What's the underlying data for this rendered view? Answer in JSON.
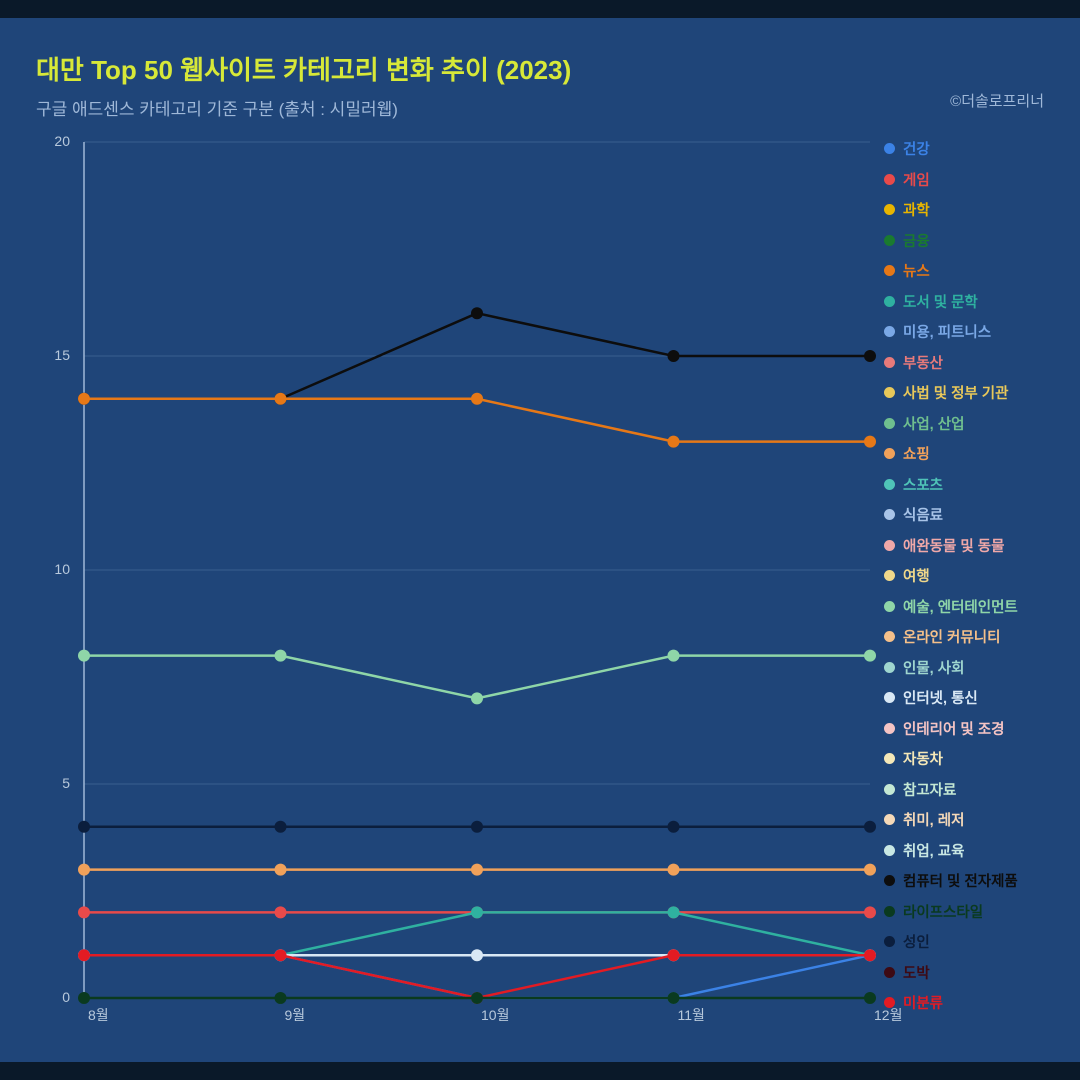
{
  "title": "대만 Top 50 웹사이트 카테고리 변화 추이 (2023)",
  "subtitle": "구글 애드센스 카테고리 기준 구분 (출처 : 시밀러웹)",
  "credit": "©더솔로프리너",
  "colors": {
    "page_bg": "#0a1929",
    "panel_bg": "#1f4579",
    "title": "#d7e838",
    "subtitle": "#9fb8d8",
    "credit": "#9fb8d8",
    "axis_text": "#b8c9dc",
    "grid": "#3a5f8f",
    "axis_line": "#9fb8d8"
  },
  "chart": {
    "type": "line",
    "x_labels": [
      "8월",
      "9월",
      "10월",
      "11월",
      "12월"
    ],
    "y": {
      "min": 0,
      "max": 20,
      "ticks": [
        0,
        5,
        10,
        15,
        20
      ]
    },
    "marker_radius": 6,
    "line_width": 2.5,
    "series": [
      {
        "name": "컴퓨터 및 전자제품",
        "color": "#0d0d0d",
        "values": [
          14,
          14,
          16,
          15,
          15
        ]
      },
      {
        "name": "뉴스",
        "color": "#e67817",
        "values": [
          14,
          14,
          14,
          13,
          13
        ]
      },
      {
        "name": "예술, 엔터테인먼트",
        "color": "#8fd6a8",
        "values": [
          8,
          8,
          7,
          8,
          8
        ]
      },
      {
        "name": "성인",
        "color": "#0b1e3d",
        "values": [
          4,
          4,
          4,
          4,
          4
        ]
      },
      {
        "name": "쇼핑",
        "color": "#f0a15a",
        "values": [
          3,
          3,
          3,
          3,
          3
        ]
      },
      {
        "name": "게임",
        "color": "#e84a4a",
        "values": [
          2,
          2,
          2,
          2,
          2
        ]
      },
      {
        "name": "도서 및 문학",
        "color": "#2fb1a0",
        "values": [
          1,
          1,
          2,
          2,
          1
        ]
      },
      {
        "name": "인터넷, 통신",
        "color": "#d9e8f5",
        "values": [
          1,
          1,
          1,
          1,
          1
        ]
      },
      {
        "name": "건강",
        "color": "#3b82e6",
        "values": [
          1,
          1,
          0,
          0,
          1
        ]
      },
      {
        "name": "미분류",
        "color": "#e31b23",
        "values": [
          1,
          1,
          0,
          1,
          1
        ]
      },
      {
        "name": "라이프스타일",
        "color": "#0a3a1f",
        "values": [
          0,
          0,
          0,
          0,
          0
        ]
      }
    ]
  },
  "legend": [
    {
      "label": "건강",
      "color": "#3b82e6"
    },
    {
      "label": "게임",
      "color": "#e84a4a"
    },
    {
      "label": "과학",
      "color": "#e8b500"
    },
    {
      "label": "금융",
      "color": "#1a7a2f"
    },
    {
      "label": "뉴스",
      "color": "#e67817"
    },
    {
      "label": "도서 및 문학",
      "color": "#2fb1a0"
    },
    {
      "label": "미용, 피트니스",
      "color": "#7aa8e6"
    },
    {
      "label": "부동산",
      "color": "#e87a7a"
    },
    {
      "label": "사법 및 정부 기관",
      "color": "#e8c85a"
    },
    {
      "label": "사업, 산업",
      "color": "#6fbf8f"
    },
    {
      "label": "쇼핑",
      "color": "#f0a15a"
    },
    {
      "label": "스포츠",
      "color": "#4fc4b8"
    },
    {
      "label": "식음료",
      "color": "#a8c4e8"
    },
    {
      "label": "애완동물 및 동물",
      "color": "#f0a8a8"
    },
    {
      "label": "여행",
      "color": "#f0d88a"
    },
    {
      "label": "예술, 엔터테인먼트",
      "color": "#8fd6a8"
    },
    {
      "label": "온라인 커뮤니티",
      "color": "#f5c08a"
    },
    {
      "label": "인물, 사회",
      "color": "#9fd6cf"
    },
    {
      "label": "인터넷, 통신",
      "color": "#d9e8f5"
    },
    {
      "label": "인테리어 및 조경",
      "color": "#f5c4c4"
    },
    {
      "label": "자동차",
      "color": "#f5e8b8"
    },
    {
      "label": "참고자료",
      "color": "#c4e8d4"
    },
    {
      "label": "취미, 레저",
      "color": "#f5d9b8"
    },
    {
      "label": "취업, 교육",
      "color": "#c9e8e4"
    },
    {
      "label": "컴퓨터 및 전자제품",
      "color": "#0d0d0d"
    },
    {
      "label": "라이프스타일",
      "color": "#0a3a1f"
    },
    {
      "label": "성인",
      "color": "#0b1e3d"
    },
    {
      "label": "도박",
      "color": "#3d0a14"
    },
    {
      "label": "미분류",
      "color": "#e31b23"
    }
  ]
}
